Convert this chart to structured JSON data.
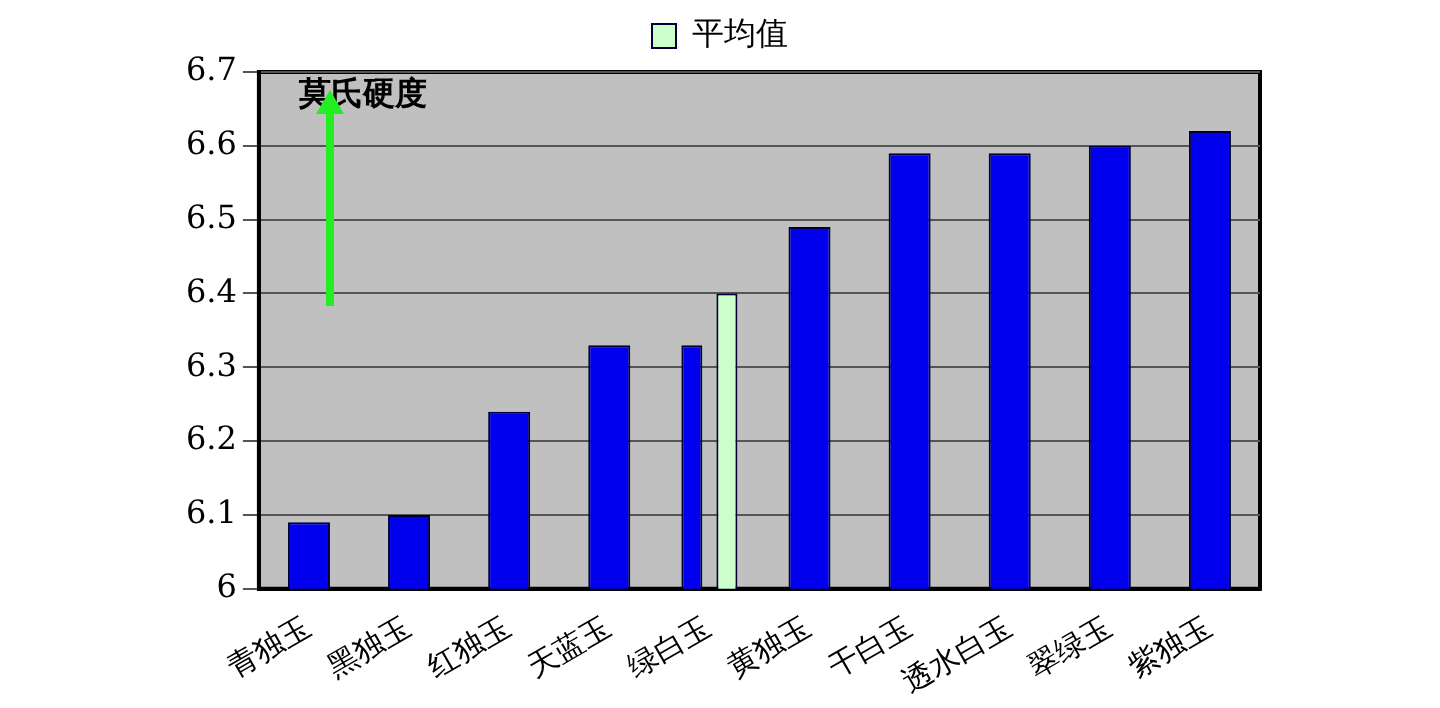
{
  "chart_data": {
    "type": "bar",
    "ylabel": "莫氏硬度",
    "categories": [
      "青独玉",
      "黑独玉",
      "红独玉",
      "天蓝玉",
      "绿白玉",
      "黄独玉",
      "干白玉",
      "透水白玉",
      "翠绿玉",
      "紫独玉"
    ],
    "series": [
      {
        "color": "#0000ee",
        "values": [
          6.09,
          6.1,
          6.24,
          6.33,
          6.33,
          6.49,
          6.59,
          6.59,
          6.6,
          6.62
        ]
      },
      {
        "name": "平均值",
        "color": "#ccffcc",
        "values": [
          null,
          null,
          null,
          null,
          6.4,
          null,
          null,
          null,
          null,
          null
        ]
      }
    ],
    "ylim": [
      6,
      6.7
    ],
    "yticks": [
      6,
      6.1,
      6.2,
      6.3,
      6.4,
      6.5,
      6.6,
      6.7
    ],
    "grid": "y",
    "legend": "top"
  }
}
